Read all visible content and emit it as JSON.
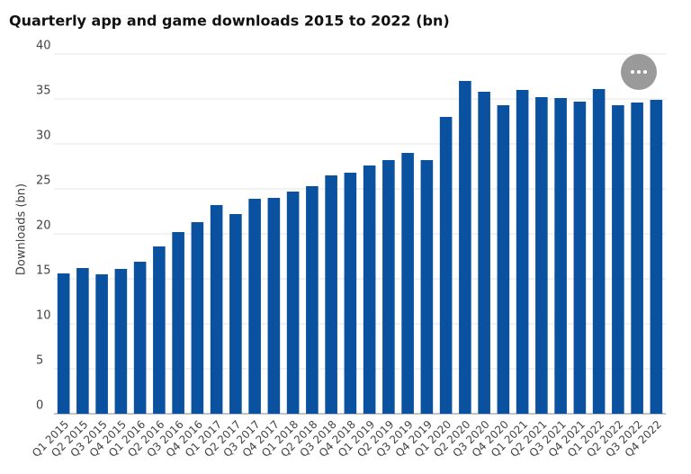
{
  "chart_data": {
    "type": "bar",
    "title": "Quarterly app and game downloads 2015 to 2022 (bn)",
    "y_label": "Downloads (bn)",
    "categories": [
      "Q1 2015",
      "Q2 2015",
      "Q3 2015",
      "Q4 2015",
      "Q1 2016",
      "Q2 2016",
      "Q3 2016",
      "Q4 2016",
      "Q1 2017",
      "Q2 2017",
      "Q3 2017",
      "Q4 2017",
      "Q1 2018",
      "Q2 2018",
      "Q3 2018",
      "Q4 2018",
      "Q1 2019",
      "Q2 2019",
      "Q3 2019",
      "Q4 2019",
      "Q1 2020",
      "Q2 2020",
      "Q3 2020",
      "Q4 2020",
      "Q1 2021",
      "Q2 2021",
      "Q3 2021",
      "Q4 2021",
      "Q1 2022",
      "Q2 2022",
      "Q3 2022",
      "Q4 2022"
    ],
    "values": [
      15.6,
      16.2,
      15.5,
      16.1,
      16.9,
      18.6,
      20.2,
      21.3,
      23.2,
      22.2,
      23.9,
      24.0,
      24.7,
      25.3,
      26.5,
      26.8,
      27.6,
      28.2,
      29.0,
      28.2,
      33.0,
      37.0,
      35.8,
      34.3,
      36.0,
      35.2,
      35.1,
      34.7,
      36.1,
      34.3,
      34.6,
      34.9
    ],
    "color": "#0a52a0",
    "ylim": [
      0,
      40
    ],
    "yticks": [
      0,
      5,
      10,
      15,
      20,
      25,
      30,
      35,
      40
    ],
    "grid": true
  }
}
